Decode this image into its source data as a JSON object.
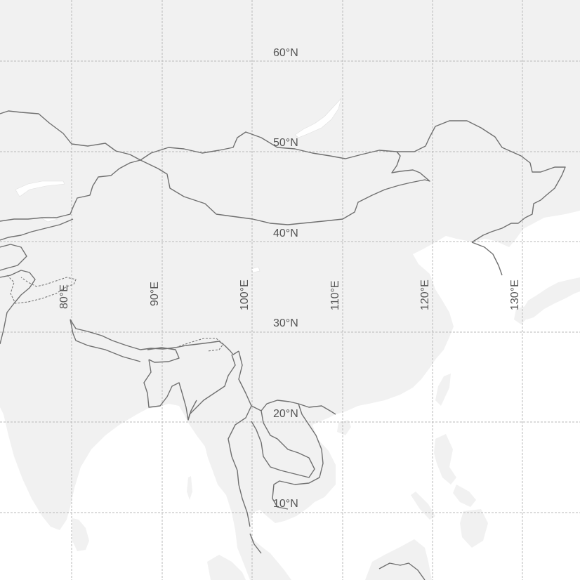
{
  "map": {
    "latitude_labels": [
      {
        "key": "n60",
        "text": "60°N"
      },
      {
        "key": "n50",
        "text": "50°N"
      },
      {
        "key": "n40",
        "text": "40°N"
      },
      {
        "key": "n30",
        "text": "30°N"
      },
      {
        "key": "n20",
        "text": "20°N"
      },
      {
        "key": "n10",
        "text": "10°N"
      }
    ],
    "longitude_labels": [
      {
        "key": "e80",
        "text": "80°E"
      },
      {
        "key": "e90",
        "text": "90°E"
      },
      {
        "key": "e100",
        "text": "100°E"
      },
      {
        "key": "e110",
        "text": "110°E"
      },
      {
        "key": "e120",
        "text": "120°E"
      },
      {
        "key": "e130",
        "text": "130°E"
      }
    ],
    "colors": {
      "ocean": "#ffffff",
      "land": "#f1f1f1",
      "border": "#707070",
      "graticule": "#b9b9b9",
      "label": "#555555"
    }
  }
}
